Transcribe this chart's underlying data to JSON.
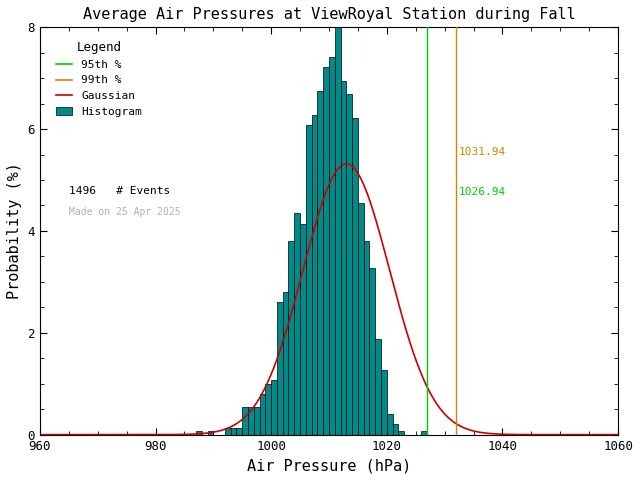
{
  "title": "Average Air Pressures at ViewRoyal Station during Fall",
  "xlabel": "Air Pressure (hPa)",
  "ylabel": "Probability (%)",
  "xlim": [
    960,
    1060
  ],
  "ylim": [
    0,
    8
  ],
  "xticks": [
    960,
    980,
    1000,
    1020,
    1040,
    1060
  ],
  "yticks": [
    0,
    2,
    4,
    6,
    8
  ],
  "mean": 1013.0,
  "std": 7.5,
  "gauss_mean": 1013.0,
  "gauss_std": 7.5,
  "n_events": 1496,
  "p95": 1026.94,
  "p99": 1031.94,
  "hist_color": "#008B8B",
  "hist_edge_color": "#000000",
  "gaussian_color": "#cc0000",
  "p95_color": "#00cc00",
  "p99_color": "#cc8800",
  "p95_label": "1026.94",
  "p99_label": "1031.94",
  "watermark": "Made on 25 Apr 2025",
  "n_label": "1496",
  "background_color": "#ffffff",
  "title_fontsize": 11,
  "label_fontsize": 11
}
